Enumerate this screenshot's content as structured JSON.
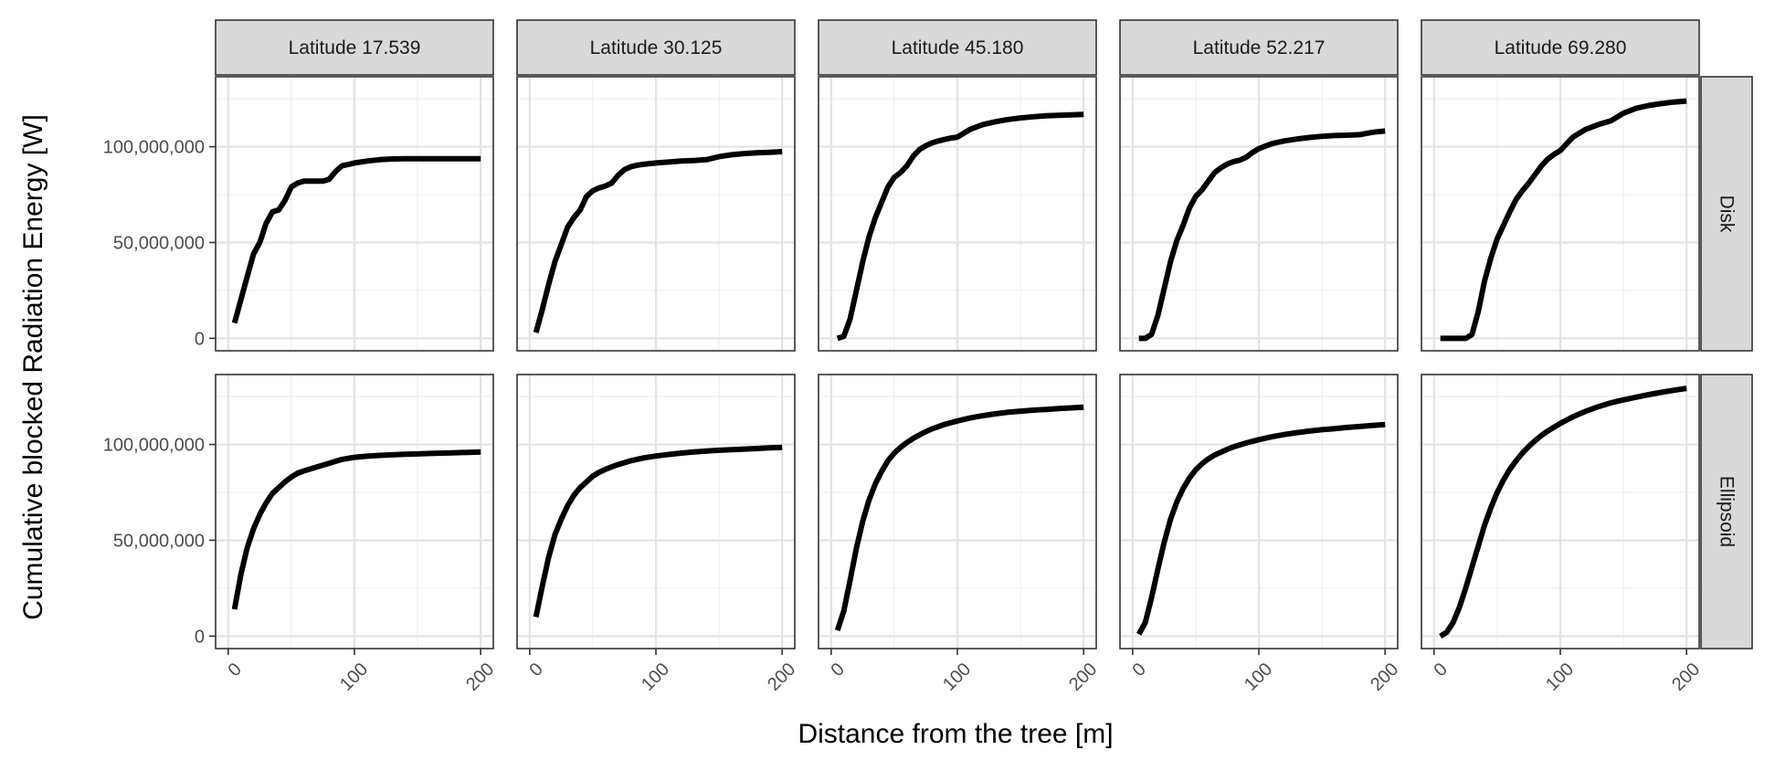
{
  "chart_data": {
    "type": "line",
    "xlabel": "Distance from the tree [m]",
    "ylabel": "Cumulative blocked Radiation Energy [W]",
    "xlim": [
      0,
      200
    ],
    "ylim": [
      0,
      130000000
    ],
    "x_ticks": [
      0,
      100,
      200
    ],
    "x_tick_labels": [
      "0",
      "100",
      "200"
    ],
    "y_ticks": [
      0,
      50000000,
      100000000
    ],
    "y_tick_labels": [
      "0",
      "50,000,000",
      "100,000,000"
    ],
    "grid": true,
    "column_facets": [
      "Latitude 17.539",
      "Latitude 30.125",
      "Latitude 45.180",
      "Latitude 52.217",
      "Latitude 69.280"
    ],
    "row_facets": [
      "Disk",
      "Ellipsoid"
    ],
    "line_color": "#000000",
    "panels": [
      {
        "row": 0,
        "col": 0,
        "x": [
          5,
          10,
          15,
          20,
          25,
          30,
          35,
          40,
          45,
          50,
          55,
          60,
          65,
          70,
          75,
          80,
          85,
          90,
          100,
          110,
          120,
          130,
          140,
          150,
          160,
          170,
          180,
          190,
          200
        ],
        "y": [
          8000000,
          20000000,
          32000000,
          44000000,
          50000000,
          60000000,
          66000000,
          67000000,
          72000000,
          79000000,
          81000000,
          82000000,
          82000000,
          82000000,
          82000000,
          83000000,
          87000000,
          90000000,
          91500000,
          92500000,
          93200000,
          93600000,
          93700000,
          93700000,
          93700000,
          93700000,
          93700000,
          93700000,
          93700000
        ]
      },
      {
        "row": 0,
        "col": 1,
        "x": [
          5,
          10,
          15,
          20,
          25,
          30,
          35,
          40,
          45,
          50,
          55,
          60,
          65,
          70,
          75,
          80,
          85,
          90,
          100,
          110,
          120,
          130,
          140,
          150,
          160,
          170,
          180,
          190,
          200
        ],
        "y": [
          3000000,
          15000000,
          28000000,
          40000000,
          49000000,
          58000000,
          63000000,
          67000000,
          74000000,
          77000000,
          78500000,
          79500000,
          81000000,
          85000000,
          88000000,
          89500000,
          90300000,
          90800000,
          91500000,
          92000000,
          92500000,
          92800000,
          93200000,
          94800000,
          95800000,
          96400000,
          96800000,
          97100000,
          97400000
        ]
      },
      {
        "row": 0,
        "col": 2,
        "x": [
          5,
          10,
          15,
          20,
          25,
          30,
          35,
          40,
          45,
          50,
          55,
          60,
          65,
          70,
          75,
          80,
          85,
          90,
          95,
          100,
          110,
          120,
          130,
          140,
          150,
          160,
          170,
          180,
          190,
          200
        ],
        "y": [
          0,
          1000000,
          10000000,
          25000000,
          40000000,
          53000000,
          63000000,
          71000000,
          79000000,
          84000000,
          86500000,
          90000000,
          95000000,
          98500000,
          100500000,
          102000000,
          103000000,
          103800000,
          104500000,
          105000000,
          109000000,
          111500000,
          113000000,
          114200000,
          115000000,
          115600000,
          116100000,
          116400000,
          116600000,
          116800000
        ]
      },
      {
        "row": 0,
        "col": 3,
        "x": [
          5,
          10,
          15,
          20,
          25,
          30,
          35,
          40,
          45,
          50,
          55,
          60,
          65,
          70,
          75,
          80,
          85,
          90,
          95,
          100,
          110,
          120,
          130,
          140,
          150,
          160,
          170,
          180,
          190,
          200
        ],
        "y": [
          0,
          0,
          2000000,
          12000000,
          26000000,
          40000000,
          51000000,
          59000000,
          68000000,
          74000000,
          77500000,
          82000000,
          86500000,
          89000000,
          91000000,
          92200000,
          93000000,
          94500000,
          97000000,
          99000000,
          101500000,
          103000000,
          104000000,
          104800000,
          105400000,
          105800000,
          106000000,
          106300000,
          107500000,
          108200000
        ]
      },
      {
        "row": 0,
        "col": 4,
        "x": [
          5,
          10,
          15,
          20,
          25,
          30,
          35,
          40,
          45,
          50,
          55,
          60,
          65,
          70,
          75,
          80,
          85,
          90,
          95,
          100,
          110,
          120,
          130,
          140,
          150,
          160,
          170,
          180,
          190,
          200
        ],
        "y": [
          0,
          0,
          0,
          0,
          0,
          2000000,
          14000000,
          30000000,
          42000000,
          52000000,
          59000000,
          66000000,
          72500000,
          77000000,
          81000000,
          85500000,
          90000000,
          93500000,
          96000000,
          98000000,
          105000000,
          109000000,
          111500000,
          113500000,
          117500000,
          120000000,
          121500000,
          122500000,
          123300000,
          123800000
        ]
      },
      {
        "row": 1,
        "col": 0,
        "x": [
          5,
          10,
          15,
          20,
          25,
          30,
          35,
          40,
          45,
          50,
          55,
          60,
          65,
          70,
          80,
          90,
          100,
          110,
          120,
          130,
          140,
          150,
          160,
          170,
          180,
          190,
          200
        ],
        "y": [
          14000000,
          32000000,
          46000000,
          56000000,
          63500000,
          69500000,
          74500000,
          77500000,
          80500000,
          83000000,
          85000000,
          86200000,
          87200000,
          88200000,
          90200000,
          92200000,
          93300000,
          93900000,
          94300000,
          94600000,
          94900000,
          95100000,
          95300000,
          95500000,
          95700000,
          95900000,
          96100000
        ]
      },
      {
        "row": 1,
        "col": 1,
        "x": [
          5,
          10,
          15,
          20,
          25,
          30,
          35,
          40,
          45,
          50,
          55,
          60,
          65,
          70,
          80,
          90,
          100,
          110,
          120,
          130,
          140,
          150,
          160,
          170,
          180,
          190,
          200
        ],
        "y": [
          10000000,
          26000000,
          41000000,
          53000000,
          61000000,
          68000000,
          73500000,
          77500000,
          80500000,
          83500000,
          85500000,
          87000000,
          88300000,
          89500000,
          91500000,
          93000000,
          94000000,
          94800000,
          95500000,
          96100000,
          96600000,
          97000000,
          97300000,
          97600000,
          97900000,
          98200000,
          98500000
        ]
      },
      {
        "row": 1,
        "col": 2,
        "x": [
          5,
          10,
          15,
          20,
          25,
          30,
          35,
          40,
          45,
          50,
          55,
          60,
          65,
          70,
          75,
          80,
          90,
          100,
          110,
          120,
          130,
          140,
          150,
          160,
          170,
          180,
          190,
          200
        ],
        "y": [
          3000000,
          13000000,
          29000000,
          46000000,
          60000000,
          71000000,
          79500000,
          86000000,
          91500000,
          95500000,
          98500000,
          101000000,
          103200000,
          105000000,
          106700000,
          108200000,
          110500000,
          112300000,
          113800000,
          115000000,
          116000000,
          116800000,
          117400000,
          117900000,
          118300000,
          118700000,
          119100000,
          119500000
        ]
      },
      {
        "row": 1,
        "col": 3,
        "x": [
          5,
          10,
          15,
          20,
          25,
          30,
          35,
          40,
          45,
          50,
          55,
          60,
          65,
          70,
          75,
          80,
          90,
          100,
          110,
          120,
          130,
          140,
          150,
          160,
          170,
          180,
          190,
          200
        ],
        "y": [
          1000000,
          7000000,
          20000000,
          35000000,
          49000000,
          61000000,
          70000000,
          77000000,
          82500000,
          86800000,
          90000000,
          92500000,
          94500000,
          96000000,
          97500000,
          98800000,
          100800000,
          102500000,
          104000000,
          105200000,
          106200000,
          107000000,
          107700000,
          108300000,
          108900000,
          109400000,
          109900000,
          110400000
        ]
      },
      {
        "row": 1,
        "col": 4,
        "x": [
          5,
          10,
          15,
          20,
          25,
          30,
          35,
          40,
          45,
          50,
          55,
          60,
          65,
          70,
          75,
          80,
          85,
          90,
          95,
          100,
          110,
          120,
          130,
          140,
          150,
          160,
          170,
          180,
          190,
          200
        ],
        "y": [
          0,
          2000000,
          7000000,
          15000000,
          25000000,
          36000000,
          47000000,
          58000000,
          67000000,
          75000000,
          81500000,
          87000000,
          91500000,
          95500000,
          99000000,
          102000000,
          104700000,
          107000000,
          109000000,
          111000000,
          114500000,
          117300000,
          119700000,
          121700000,
          123300000,
          124700000,
          126000000,
          127200000,
          128300000,
          129300000
        ]
      }
    ]
  }
}
